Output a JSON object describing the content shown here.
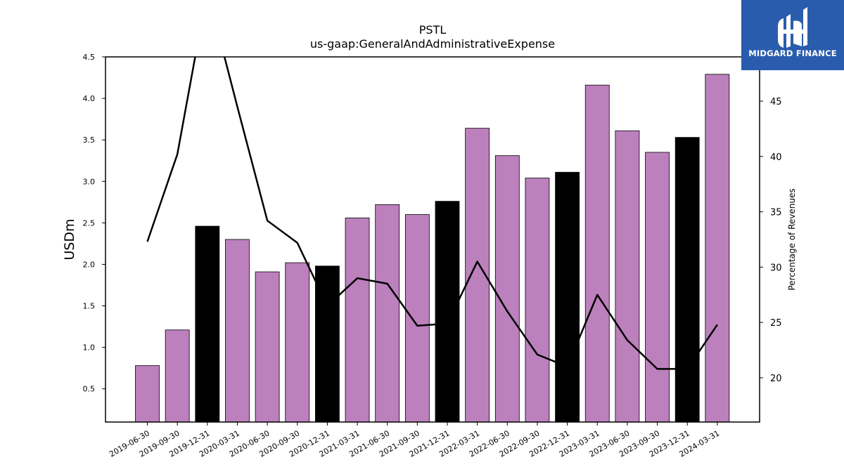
{
  "logo": {
    "text": "MIDGARD FINANCE"
  },
  "chart_data": {
    "type": "bar",
    "title": "PSTL",
    "subtitle": "us-gaap:GeneralAndAdministrativeExpense",
    "ylabel": "USDm",
    "ylabel_right": "Percentage of Revenues",
    "ylim": [
      0.1,
      4.5
    ],
    "ylim_right": [
      16,
      49
    ],
    "yticks": [
      "0.5",
      "1.0",
      "1.5",
      "2.0",
      "2.5",
      "3.0",
      "3.5",
      "4.0",
      "4.5"
    ],
    "yticks_right": [
      "20",
      "25",
      "30",
      "35",
      "40",
      "45"
    ],
    "categories": [
      "2019-06-30",
      "2019-09-30",
      "2019-12-31",
      "2020-03-31",
      "2020-06-30",
      "2020-09-30",
      "2020-12-31",
      "2021-03-31",
      "2021-06-30",
      "2021-09-30",
      "2021-12-31",
      "2022-03-31",
      "2022-06-30",
      "2022-09-30",
      "2022-12-31",
      "2023-03-31",
      "2023-06-30",
      "2023-09-30",
      "2023-12-31",
      "2024-03-31"
    ],
    "series": [
      {
        "kind": "bar",
        "values": [
          0.78,
          1.21,
          2.46,
          2.3,
          1.91,
          2.02,
          1.98,
          2.56,
          2.72,
          2.6,
          2.76,
          3.64,
          3.31,
          3.04,
          3.11,
          4.16,
          3.61,
          3.35,
          3.53,
          4.29
        ],
        "colors": [
          "#bc80bd",
          "#bc80bd",
          "#000000",
          "#bc80bd",
          "#bc80bd",
          "#bc80bd",
          "#000000",
          "#bc80bd",
          "#bc80bd",
          "#bc80bd",
          "#000000",
          "#bc80bd",
          "#bc80bd",
          "#bc80bd",
          "#000000",
          "#bc80bd",
          "#bc80bd",
          "#bc80bd",
          "#000000",
          "#bc80bd"
        ]
      },
      {
        "kind": "line",
        "axis": "right",
        "color": "#000000",
        "values": [
          32.3,
          40.2,
          55.0,
          44.5,
          34.2,
          32.2,
          26.5,
          29.0,
          28.5,
          24.7,
          24.9,
          30.5,
          26.0,
          22.1,
          21.0,
          27.5,
          23.4,
          20.8,
          20.8,
          24.8
        ]
      }
    ]
  }
}
